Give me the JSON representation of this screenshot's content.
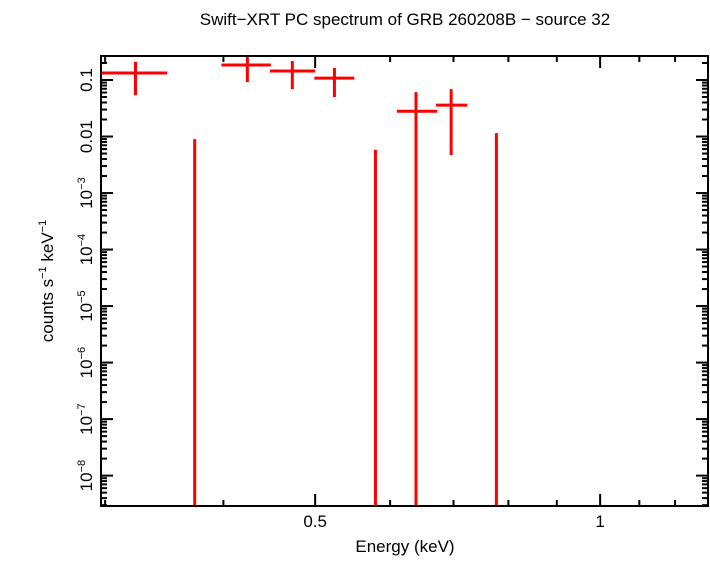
{
  "chart_data": {
    "type": "scatter",
    "title": "Swift−XRT PC spectrum of GRB 260208B − source 32",
    "xlabel": "Energy (keV)",
    "ylabel_main": "counts s",
    "ylabel_sup1": "−1",
    "ylabel_mid": " keV",
    "ylabel_sup2": "−1",
    "xscale": "log",
    "yscale": "log",
    "xlim": [
      0.297,
      1.3
    ],
    "ylim": [
      2.9e-09,
      0.266
    ],
    "x_tick_labels": [
      {
        "value": 0.5,
        "label": "0.5"
      },
      {
        "value": 1,
        "label": "1"
      }
    ],
    "y_tick_labels": [
      {
        "value": 0.1,
        "base": "0.1",
        "exp": ""
      },
      {
        "value": 0.01,
        "base": "0.01",
        "exp": ""
      },
      {
        "value": 0.001,
        "base": "10",
        "exp": "−3"
      },
      {
        "value": 0.0001,
        "base": "10",
        "exp": "−4"
      },
      {
        "value": 1e-05,
        "base": "10",
        "exp": "−5"
      },
      {
        "value": 1e-06,
        "base": "10",
        "exp": "−6"
      },
      {
        "value": 1e-07,
        "base": "10",
        "exp": "−7"
      },
      {
        "value": 1e-08,
        "base": "10",
        "exp": "−8"
      }
    ],
    "grid": false,
    "color": "#ff0000",
    "points": [
      {
        "x": 0.323,
        "xlo": 0.297,
        "xhi": 0.349,
        "y": 0.133,
        "ylo": 0.054,
        "yhi": 0.21
      },
      {
        "x": 0.424,
        "xlo": 0.398,
        "xhi": 0.449,
        "y": 0.184,
        "ylo": 0.092,
        "yhi": 0.28
      },
      {
        "x": 0.473,
        "xlo": 0.448,
        "xhi": 0.5,
        "y": 0.144,
        "ylo": 0.069,
        "yhi": 0.217
      },
      {
        "x": 0.524,
        "xlo": 0.499,
        "xhi": 0.55,
        "y": 0.108,
        "ylo": 0.05,
        "yhi": 0.163
      },
      {
        "x": 0.639,
        "xlo": 0.61,
        "xhi": 0.673,
        "y": 0.028,
        "ylo": 0,
        "yhi": 0.061
      },
      {
        "x": 0.696,
        "xlo": 0.671,
        "xhi": 0.724,
        "y": 0.036,
        "ylo": 0.0047,
        "yhi": 0.069
      }
    ],
    "upper_only": [
      {
        "x": 0.373,
        "yhi": 0.009
      },
      {
        "x": 0.579,
        "yhi": 0.0058
      },
      {
        "x": 0.777,
        "yhi": 0.0115
      }
    ]
  }
}
